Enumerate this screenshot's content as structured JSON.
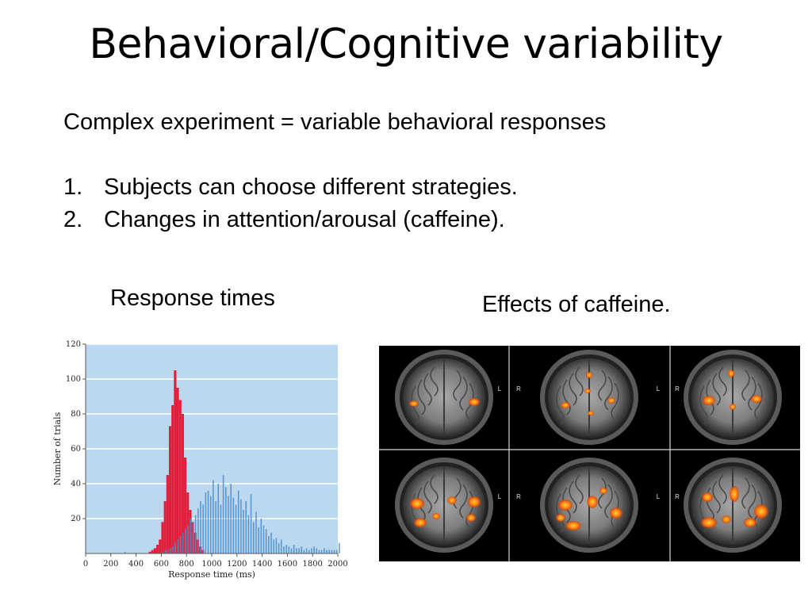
{
  "slide": {
    "title": "Behavioral/Cognitive variability",
    "intro": "Complex experiment = variable behavioral responses",
    "bullets": [
      {
        "num": "1.",
        "text": "Subjects can choose different strategies."
      },
      {
        "num": "2.",
        "text": "Changes in attention/arousal (caffeine)."
      }
    ],
    "caption_left": "Response times",
    "caption_right": "Effects of caffeine."
  },
  "brain_panel": {
    "label_l": "L",
    "label_r": "R"
  },
  "chart_data": {
    "type": "bar",
    "xlabel": "Response time (ms)",
    "ylabel": "Number of trials",
    "xlim": [
      0,
      2000
    ],
    "ylim": [
      0,
      120
    ],
    "xticks": [
      0,
      200,
      400,
      600,
      800,
      1000,
      1200,
      1400,
      1600,
      1800,
      2000
    ],
    "yticks": [
      20,
      40,
      60,
      80,
      100,
      120
    ],
    "bin_width_ms": 20,
    "grid": "horizontal",
    "colors": {
      "background": "#bcd8f0",
      "grid": "#ffffff",
      "series_red": "#e0203c",
      "series_blue": "#4a8cc8"
    },
    "series": [
      {
        "color": "#e0203c",
        "x": [
          500,
          520,
          540,
          560,
          580,
          600,
          620,
          640,
          660,
          680,
          700,
          720,
          740,
          760,
          780,
          800,
          820,
          840,
          860,
          880,
          900,
          920
        ],
        "values": [
          1,
          2,
          3,
          5,
          8,
          18,
          30,
          45,
          73,
          85,
          105,
          95,
          88,
          80,
          55,
          35,
          25,
          18,
          12,
          8,
          4,
          2
        ]
      },
      {
        "color": "#4a8cc8",
        "x": [
          300,
          600,
          620,
          640,
          660,
          680,
          700,
          720,
          740,
          760,
          780,
          800,
          820,
          840,
          860,
          880,
          900,
          920,
          940,
          960,
          980,
          1000,
          1020,
          1040,
          1060,
          1080,
          1100,
          1120,
          1140,
          1160,
          1180,
          1200,
          1220,
          1240,
          1260,
          1280,
          1300,
          1320,
          1340,
          1360,
          1380,
          1400,
          1420,
          1440,
          1460,
          1480,
          1500,
          1520,
          1540,
          1560,
          1580,
          1600,
          1620,
          1640,
          1660,
          1680,
          1700,
          1720,
          1740,
          1760,
          1780,
          1800,
          1820,
          1840,
          1860,
          1880,
          1900,
          1920,
          1940,
          1960,
          1980,
          2000
        ],
        "values": [
          1,
          1,
          2,
          2,
          3,
          4,
          6,
          8,
          10,
          12,
          14,
          16,
          20,
          18,
          22,
          26,
          30,
          28,
          35,
          36,
          33,
          42,
          30,
          40,
          28,
          45,
          38,
          33,
          40,
          32,
          28,
          36,
          31,
          25,
          30,
          22,
          34,
          18,
          24,
          15,
          20,
          16,
          14,
          10,
          12,
          8,
          9,
          6,
          8,
          4,
          5,
          4,
          3,
          5,
          3,
          3,
          4,
          2,
          3,
          2,
          3,
          4,
          3,
          2,
          2,
          3,
          2,
          2,
          2,
          2,
          2,
          6
        ]
      }
    ]
  }
}
